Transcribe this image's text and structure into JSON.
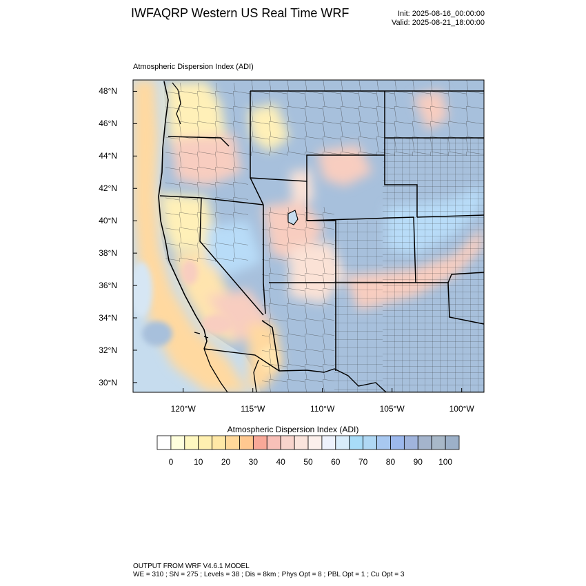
{
  "header": {
    "title": "IWFAQRP Western US Real Time WRF",
    "init": "Init: 2025-08-16_00:00:00",
    "valid": "Valid: 2025-08-21_18:00:00"
  },
  "map": {
    "field_label": "Atmospheric Dispersion Index   (ADI)",
    "lat_labels": [
      {
        "lat": 48,
        "text": "48°N"
      },
      {
        "lat": 46,
        "text": "46°N"
      },
      {
        "lat": 44,
        "text": "44°N"
      },
      {
        "lat": 42,
        "text": "42°N"
      },
      {
        "lat": 40,
        "text": "40°N"
      },
      {
        "lat": 38,
        "text": "38°N"
      },
      {
        "lat": 36,
        "text": "36°N"
      },
      {
        "lat": 34,
        "text": "34°N"
      },
      {
        "lat": 32,
        "text": "32°N"
      },
      {
        "lat": 30,
        "text": "30°N"
      }
    ],
    "lon_labels": [
      {
        "lon": -120,
        "text": "120°W"
      },
      {
        "lon": -115,
        "text": "115°W"
      },
      {
        "lon": -110,
        "text": "110°W"
      },
      {
        "lon": -105,
        "text": "105°W"
      },
      {
        "lon": -100,
        "text": "100°W"
      }
    ],
    "extent": {
      "lon_min": -123.6,
      "lon_max": -98.4,
      "lat_min": 29.4,
      "lat_max": 48.7
    }
  },
  "colorbar": {
    "title": "Atmospheric Dispersion Index  (ADI)",
    "colors": [
      "#ffffff",
      "#ffffdd",
      "#fff8c0",
      "#fff0b0",
      "#ffe8a6",
      "#ffd89a",
      "#ffc890",
      "#f8a898",
      "#f8c0b8",
      "#f8d4cc",
      "#fae4dc",
      "#fcf0ec",
      "#eef2fc",
      "#d8ecfa",
      "#a8dcf8",
      "#b0d8f4",
      "#a8c8f0",
      "#9cb8ec",
      "#a0b4dc",
      "#a4b4cc",
      "#a8b8c8",
      "#9cb0c8"
    ],
    "labels": [
      {
        "value": 0,
        "text": "0"
      },
      {
        "value": 10,
        "text": "10"
      },
      {
        "value": 20,
        "text": "20"
      },
      {
        "value": 30,
        "text": "30"
      },
      {
        "value": 40,
        "text": "40"
      },
      {
        "value": 50,
        "text": "50"
      },
      {
        "value": 60,
        "text": "60"
      },
      {
        "value": 70,
        "text": "70"
      },
      {
        "value": 80,
        "text": "80"
      },
      {
        "value": 90,
        "text": "90"
      },
      {
        "value": 100,
        "text": "100"
      }
    ]
  },
  "footer": {
    "line1": "OUTPUT FROM WRF V4.6.1 MODEL",
    "line2": "WE = 310 ; SN = 275 ; Levels = 38 ; Dis = 8km ; Phys Opt = 8 ; PBL Opt = 1 ; Cu Opt = 3"
  },
  "palette": {
    "ocean": "#c6dcee",
    "coast_warm": "#ffd9a0",
    "good_dispersion": "#a7c0dc",
    "poor_dispersion": "#f8cdc0",
    "fair": "#fff0b8",
    "border": "#000000"
  }
}
